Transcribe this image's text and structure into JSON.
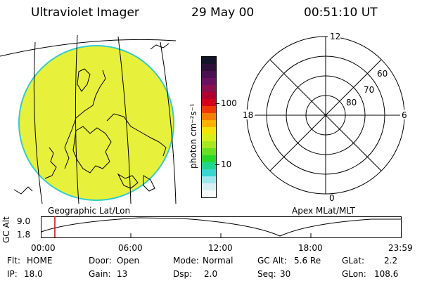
{
  "header": {
    "instrument": "Ultraviolet Imager",
    "date": "29 May 00",
    "time": "00:51:10 UT"
  },
  "colors": {
    "image_fill": "#e7f03a",
    "image_edge": "#33cccc",
    "timeline_marker": "#cc0000"
  },
  "colorbar": {
    "unit_label": "photon cm⁻²s⁻¹",
    "ticks": [
      "100",
      "10"
    ],
    "colors": [
      "#141428",
      "#2d0f3a",
      "#4a1050",
      "#6a1060",
      "#8c0f50",
      "#b00030",
      "#d4001a",
      "#ee3a00",
      "#f57f00",
      "#ffb000",
      "#f2e30c",
      "#d6ee19",
      "#a8e81f",
      "#67e021",
      "#27d828",
      "#20d68f",
      "#37d6d0",
      "#9fe6ee",
      "#d8f0f4",
      "#f6fafb"
    ]
  },
  "left_panel": {
    "caption": "Geographic Lat/Lon"
  },
  "polar_plot": {
    "caption": "Apex MLat/MLT",
    "mlt_labels": {
      "top": "12",
      "right": "6",
      "bottom": "0",
      "left": "18"
    },
    "lat_labels": [
      "60",
      "70",
      "80"
    ]
  },
  "timeline": {
    "ylabel": "GC Alt",
    "yticks": [
      "9.0",
      "1.8"
    ],
    "xticks": [
      "00:00",
      "06:00",
      "12:00",
      "18:00",
      "23:59"
    ],
    "marker_time": "00:51"
  },
  "footer": {
    "flt_label": "Flt:",
    "flt_value": "HOME",
    "ip_label": "IP:",
    "ip_value": "18.0",
    "door_label": "Door:",
    "door_value": "Open",
    "gain_label": "Gain:",
    "gain_value": "13",
    "mode_label": "Mode:",
    "mode_value": "Normal",
    "dsp_label": "Dsp:",
    "dsp_value": "2.0",
    "gcalt_label": "GC Alt:",
    "gcalt_value": "5.6 Re",
    "seq_label": "Seq:",
    "seq_value": "30",
    "glat_label": "GLat:",
    "glat_value": "2.2",
    "glon_label": "GLon:",
    "glon_value": "108.6"
  }
}
